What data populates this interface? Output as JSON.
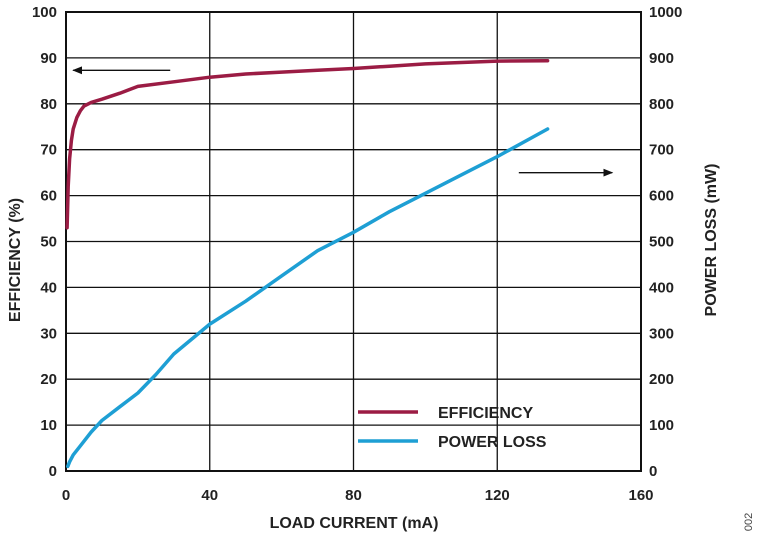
{
  "chart_data": {
    "type": "line",
    "x_axis": {
      "label": "LOAD CURRENT (mA)",
      "range": [
        0,
        160
      ],
      "ticks": [
        "0",
        "40",
        "80",
        "120",
        "160"
      ]
    },
    "y_left": {
      "label": "EFFICIENCY (%)",
      "range": [
        0,
        100
      ],
      "ticks": [
        "0",
        "10",
        "20",
        "30",
        "40",
        "50",
        "60",
        "70",
        "80",
        "90",
        "100"
      ]
    },
    "y_right": {
      "label": "POWER LOSS (mW)",
      "range": [
        0,
        1000
      ],
      "ticks": [
        "0",
        "100",
        "200",
        "300",
        "400",
        "500",
        "600",
        "700",
        "800",
        "900",
        "1000"
      ]
    },
    "grid": true,
    "legend_position": "bottom-right",
    "series": [
      {
        "name": "EFFICIENCY",
        "axis": "left",
        "color": "#9b1c44",
        "x": [
          0.3,
          0.6,
          1,
          1.5,
          2,
          3,
          4,
          5,
          7,
          10,
          15,
          20,
          30,
          40,
          50,
          60,
          70,
          80,
          90,
          100,
          110,
          120,
          134
        ],
        "y": [
          53,
          62,
          68,
          72,
          74.5,
          77,
          78.5,
          79.5,
          80.3,
          81,
          82.3,
          83.8,
          84.8,
          85.8,
          86.5,
          86.9,
          87.3,
          87.7,
          88.2,
          88.7,
          89,
          89.3,
          89.4
        ]
      },
      {
        "name": "POWER LOSS",
        "axis": "right",
        "color": "#1e9fd4",
        "x": [
          0.5,
          1,
          2,
          4,
          7,
          10,
          15,
          20,
          25,
          30,
          40,
          50,
          60,
          70,
          80,
          90,
          100,
          110,
          120,
          134
        ],
        "y": [
          10,
          20,
          35,
          55,
          85,
          110,
          140,
          170,
          210,
          255,
          320,
          370,
          425,
          480,
          520,
          565,
          605,
          645,
          685,
          745
        ]
      }
    ],
    "annotations": [
      {
        "text": "arrow pointing left to efficiency axis",
        "x_from": 29,
        "x_to": 2,
        "y": 87.3,
        "axis": "left"
      },
      {
        "text": "arrow pointing right to power loss axis",
        "x_from": 126,
        "x_to": 152,
        "y": 650,
        "axis": "right"
      }
    ],
    "figure_id": "002"
  }
}
